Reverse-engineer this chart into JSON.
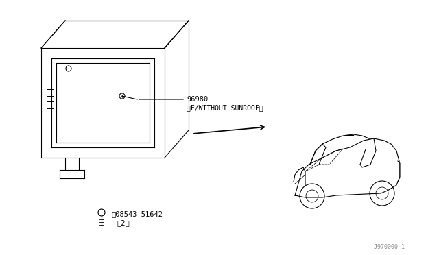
{
  "background_color": "#ffffff",
  "line_color": "#000000",
  "title": "",
  "watermark": "J970000 1",
  "part_label_1": "96980",
  "part_label_1b": "〈F/WITHOUT SUNROOF〉",
  "part_label_2": "Ⓝ08543-51642",
  "part_label_2b": "（2）",
  "fig_width": 6.4,
  "fig_height": 3.72,
  "dpi": 100
}
